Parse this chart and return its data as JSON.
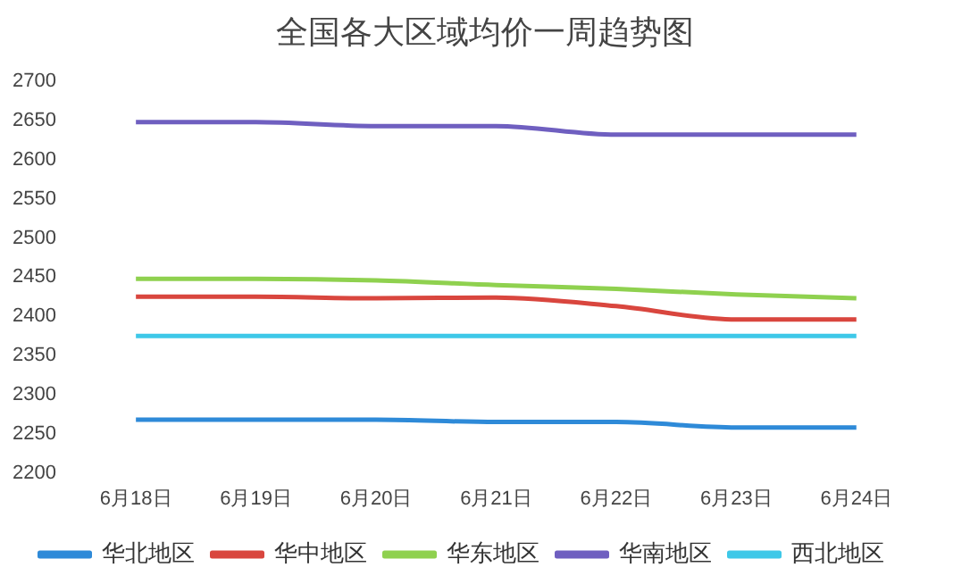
{
  "chart_data": {
    "type": "line",
    "title": "全国各大区域均价一周趋势图",
    "categories": [
      "6月18日",
      "6月19日",
      "6月20日",
      "6月21日",
      "6月22日",
      "6月23日",
      "6月24日"
    ],
    "series": [
      {
        "name": "华北地区",
        "color": "#2e8ad8",
        "values": [
          2268,
          2268,
          2268,
          2265,
          2265,
          2258,
          2258
        ]
      },
      {
        "name": "华中地区",
        "color": "#d9463e",
        "values": [
          2425,
          2425,
          2423,
          2424,
          2413,
          2396,
          2396
        ]
      },
      {
        "name": "华东地区",
        "color": "#8fd14f",
        "values": [
          2448,
          2448,
          2446,
          2440,
          2435,
          2428,
          2423
        ]
      },
      {
        "name": "华南地区",
        "color": "#6f5fc0",
        "values": [
          2648,
          2648,
          2643,
          2643,
          2632,
          2632,
          2632
        ]
      },
      {
        "name": "西北地区",
        "color": "#3ec8e8",
        "values": [
          2375,
          2375,
          2375,
          2375,
          2375,
          2375,
          2375
        ]
      }
    ],
    "ylim": [
      2200,
      2700
    ],
    "yticks": [
      2200,
      2250,
      2300,
      2350,
      2400,
      2450,
      2500,
      2550,
      2600,
      2650,
      2700
    ],
    "grid": false,
    "legend": "bottom",
    "marker": "none",
    "line_style": "solid"
  }
}
